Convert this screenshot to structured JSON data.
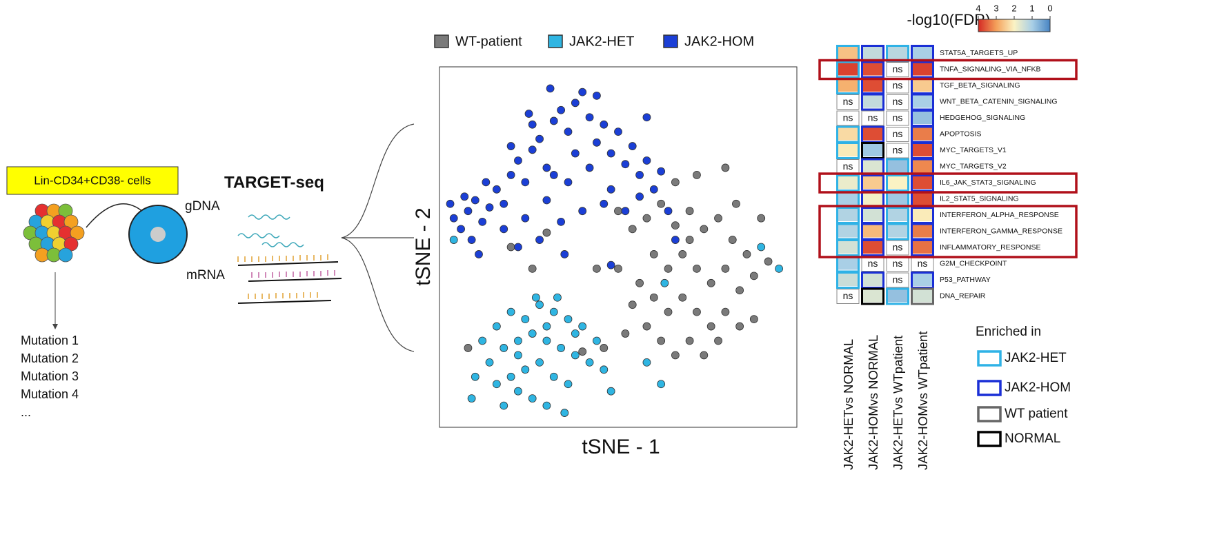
{
  "diagram": {
    "cell_label": "Lin-CD34+CD38- cells",
    "method": "TARGET-seq",
    "gdna": "gDNA",
    "mrna": "mRNA",
    "mutations": [
      "Mutation 1",
      "Mutation 2",
      "Mutation 3",
      "Mutation 4",
      "..."
    ]
  },
  "chart_data": [
    {
      "type": "scatter",
      "xlabel": "tSNE - 1",
      "ylabel": "tSNE - 2",
      "xlim": [
        0,
        100
      ],
      "ylim": [
        0,
        100
      ],
      "legend": "top",
      "series": [
        {
          "name": "WT-patient",
          "color": "#7a7a7a",
          "x": [
            50,
            54,
            58,
            62,
            66,
            70,
            74,
            78,
            82,
            86,
            60,
            64,
            68,
            72,
            76,
            80,
            84,
            88,
            56,
            60,
            64,
            68,
            72,
            76,
            80,
            84,
            58,
            62,
            66,
            70,
            74,
            78,
            54,
            50,
            90,
            88,
            70,
            52,
            46,
            40,
            8,
            20,
            26,
            30,
            44,
            80,
            83,
            72,
            66,
            92
          ],
          "values": [
            60,
            55,
            58,
            62,
            56,
            60,
            55,
            58,
            52,
            48,
            48,
            44,
            48,
            44,
            40,
            44,
            38,
            42,
            40,
            36,
            32,
            36,
            32,
            28,
            32,
            28,
            28,
            24,
            20,
            24,
            20,
            24,
            34,
            44,
            58,
            30,
            52,
            26,
            22,
            21,
            22,
            50,
            44,
            54,
            44,
            72,
            62,
            70,
            68,
            46
          ]
        },
        {
          "name": "JAK2-HET",
          "color": "#2fb5e2",
          "x": [
            12,
            16,
            20,
            24,
            28,
            32,
            36,
            40,
            14,
            18,
            22,
            26,
            30,
            34,
            38,
            42,
            16,
            20,
            24,
            28,
            32,
            36,
            26,
            30,
            22,
            18,
            35,
            44,
            46,
            10,
            9,
            27,
            33,
            38,
            22,
            30,
            4,
            90,
            63,
            58,
            62,
            95,
            48
          ],
          "values": [
            24,
            28,
            32,
            30,
            34,
            32,
            30,
            28,
            18,
            22,
            24,
            26,
            24,
            22,
            20,
            18,
            12,
            14,
            16,
            18,
            14,
            12,
            8,
            6,
            10,
            6,
            4,
            24,
            16,
            14,
            8,
            36,
            36,
            26,
            20,
            28,
            52,
            50,
            40,
            18,
            12,
            44,
            10
          ]
        },
        {
          "name": "JAK2-HOM",
          "color": "#1b3fd6",
          "x": [
            4,
            6,
            8,
            10,
            12,
            9,
            14,
            16,
            18,
            20,
            22,
            24,
            26,
            28,
            30,
            32,
            34,
            36,
            38,
            40,
            42,
            44,
            46,
            48,
            50,
            52,
            54,
            56,
            58,
            60,
            62,
            18,
            24,
            30,
            36,
            42,
            48,
            28,
            34,
            40,
            46,
            52,
            20,
            26,
            38,
            44,
            32,
            13,
            7,
            56,
            64,
            66,
            48,
            35,
            3,
            11,
            22,
            25,
            31,
            58
          ],
          "values": [
            58,
            55,
            60,
            63,
            57,
            52,
            61,
            66,
            62,
            70,
            74,
            68,
            77,
            80,
            72,
            85,
            88,
            82,
            90,
            93,
            86,
            79,
            84,
            76,
            82,
            73,
            78,
            70,
            74,
            66,
            71,
            55,
            58,
            63,
            68,
            72,
            66,
            52,
            57,
            60,
            62,
            60,
            78,
            84,
            76,
            92,
            70,
            68,
            64,
            64,
            60,
            52,
            45,
            48,
            62,
            48,
            50,
            87,
            94,
            86
          ]
        }
      ]
    },
    {
      "type": "heatmap",
      "title": "-log10(FDR)",
      "colorbar": {
        "ticks": [
          4,
          3,
          2,
          1,
          0
        ],
        "colors": [
          "#d42a24",
          "#f4a05a",
          "#fbf3c4",
          "#a9cfe6",
          "#4784c3"
        ]
      },
      "rows": [
        "STAT5A_TARGETS_UP",
        "TNFA_SIGNALING_VIA_NFKB",
        "TGF_BETA_SIGNALING",
        "WNT_BETA_CATENIN_SIGNALING",
        "HEDGEHOG_SIGNALING",
        "APOPTOSIS",
        "MYC_TARGETS_V1",
        "MYC_TARGETS_V2",
        "IL6_JAK_STAT3_SIGNALING",
        "IL2_STAT5_SIGNALING",
        "INTERFERON_ALPHA_RESPONSE",
        "INTERFERON_GAMMA_RESPONSE",
        "INFLAMMATORY_RESPONSE",
        "G2M_CHECKPOINT",
        "P53_PATHWAY",
        "DNA_REPAIR"
      ],
      "columns": [
        "JAK2-HETvs NORMAL",
        "JAK2-HOMvs NORMAL",
        "JAK2-HETvs WTpatient",
        "JAK2-HOMvs WTpatient"
      ],
      "values": [
        [
          2.6,
          1.3,
          1.2,
          1.0
        ],
        [
          3.8,
          3.7,
          "ns",
          3.8
        ],
        [
          2.8,
          3.7,
          "ns",
          2.5
        ],
        [
          "ns",
          1.3,
          "ns",
          1.0
        ],
        [
          "ns",
          "ns",
          "ns",
          0.8
        ],
        [
          2.3,
          3.7,
          "ns",
          3.3
        ],
        [
          2.1,
          0.9,
          "ns",
          3.7
        ],
        [
          "ns",
          1.6,
          0.8,
          3.2
        ],
        [
          1.8,
          2.5,
          2.0,
          3.7
        ],
        [
          1.0,
          1.9,
          0.9,
          3.7
        ],
        [
          1.1,
          1.5,
          1.1,
          2.1
        ],
        [
          1.1,
          2.7,
          1.1,
          3.3
        ],
        [
          1.5,
          3.7,
          "ns",
          3.4
        ],
        [
          1.0,
          "ns",
          "ns",
          "ns"
        ],
        [
          1.4,
          1.5,
          "ns",
          1.0
        ],
        [
          "ns",
          1.6,
          0.8,
          1.5
        ]
      ],
      "borders": [
        [
          0,
          1,
          0,
          1
        ],
        [
          0,
          1,
          null,
          1
        ],
        [
          0,
          1,
          null,
          1
        ],
        [
          null,
          1,
          null,
          1
        ],
        [
          null,
          null,
          null,
          1
        ],
        [
          0,
          1,
          null,
          1
        ],
        [
          0,
          3,
          null,
          1
        ],
        [
          null,
          1,
          0,
          1
        ],
        [
          0,
          1,
          0,
          1
        ],
        [
          0,
          1,
          0,
          1
        ],
        [
          0,
          1,
          0,
          1
        ],
        [
          0,
          1,
          0,
          1
        ],
        [
          0,
          1,
          null,
          1
        ],
        [
          0,
          null,
          null,
          null
        ],
        [
          0,
          1,
          null,
          1
        ],
        [
          null,
          3,
          0,
          2
        ]
      ],
      "highlights": [
        [
          1,
          1
        ],
        [
          8,
          8
        ],
        [
          10,
          12
        ]
      ],
      "legend_title": "Enriched in",
      "legend": [
        {
          "name": "JAK2-HET",
          "color": "#2fb2e6"
        },
        {
          "name": "JAK2-HOM",
          "color": "#1a2fd6"
        },
        {
          "name": "WT patient",
          "color": "#666666"
        },
        {
          "name": "NORMAL",
          "color": "#000000"
        }
      ]
    }
  ]
}
